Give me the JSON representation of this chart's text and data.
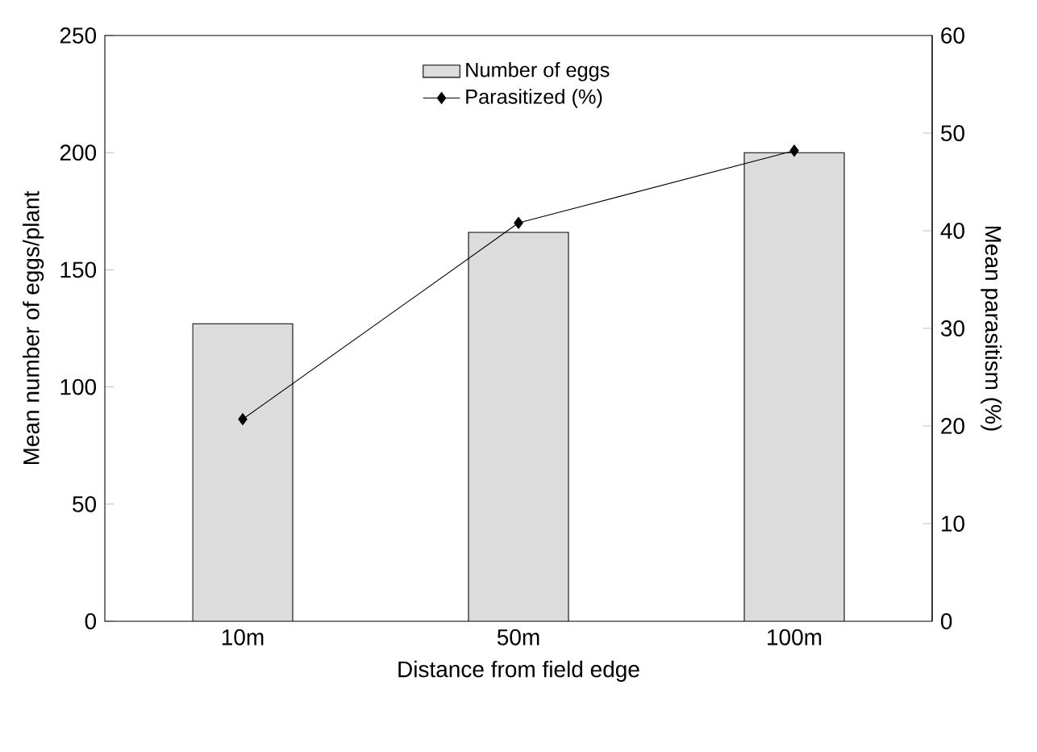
{
  "chart_data": {
    "type": "bar",
    "xlabel": "Distance from field edge",
    "ylabel": "Mean number of eggs/plant",
    "y2label": "Mean parasitism (%)",
    "categories": [
      "10m",
      "50m",
      "100m"
    ],
    "series": [
      {
        "name": "Number of eggs",
        "color": "#dcdcdc",
        "values": [
          127,
          166,
          200
        ]
      },
      {
        "name": "Parasitized (%)",
        "type": "line",
        "axis": "y2",
        "color": "#000000",
        "values": [
          20.7,
          40.8,
          48.2
        ]
      }
    ],
    "ylim": [
      0,
      250
    ],
    "yticks": [
      0,
      50,
      100,
      150,
      200,
      250
    ],
    "y2lim": [
      0,
      60
    ],
    "y2ticks": [
      0,
      10,
      20,
      30,
      40,
      50,
      60
    ],
    "marker": "diamond",
    "legend": "top",
    "grid": false
  }
}
